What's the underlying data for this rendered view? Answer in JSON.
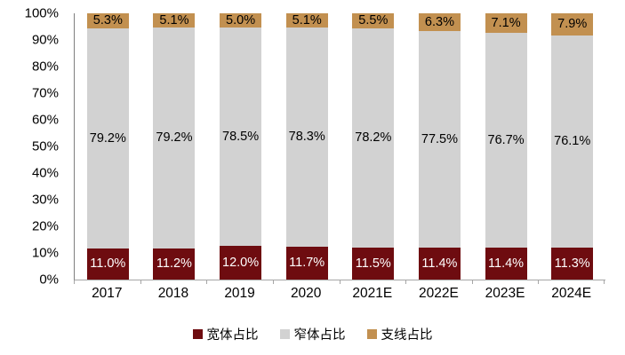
{
  "chart_data": {
    "type": "bar",
    "variant": "stacked-100-percent",
    "title": "",
    "xlabel": "",
    "ylabel": "",
    "background": "#FFFFFF",
    "grid": false,
    "categories": [
      "2017",
      "2018",
      "2019",
      "2020",
      "2021E",
      "2022E",
      "2023E",
      "2024E"
    ],
    "series": [
      {
        "name": "宽体占比",
        "color": "#6E0C10",
        "label_color": "#FFFFFF",
        "values": [
          11.0,
          11.2,
          12.0,
          11.7,
          11.5,
          11.4,
          11.4,
          11.3
        ],
        "labels": [
          "11.0%",
          "11.2%",
          "12.0%",
          "11.7%",
          "11.5%",
          "11.4%",
          "11.4%",
          "11.3%"
        ]
      },
      {
        "name": "窄体占比",
        "color": "#D2D2D2",
        "label_color": "#000000",
        "values": [
          79.2,
          79.2,
          78.5,
          78.3,
          78.2,
          77.5,
          76.7,
          76.1
        ],
        "labels": [
          "79.2%",
          "79.2%",
          "78.5%",
          "78.3%",
          "78.2%",
          "77.5%",
          "76.7%",
          "76.1%"
        ]
      },
      {
        "name": "支线占比",
        "color": "#C29050",
        "label_color": "#000000",
        "values": [
          5.3,
          5.1,
          5.0,
          5.1,
          5.5,
          6.3,
          7.1,
          7.9
        ],
        "labels": [
          "5.3%",
          "5.1%",
          "5.0%",
          "5.1%",
          "5.5%",
          "6.3%",
          "7.1%",
          "7.9%"
        ]
      }
    ],
    "y_axis": {
      "min": 0,
      "max": 100,
      "tick_step": 10,
      "ticks": [
        "100%",
        "90%",
        "80%",
        "70%",
        "60%",
        "50%",
        "40%",
        "30%",
        "20%",
        "10%",
        "0%"
      ]
    },
    "legend": {
      "position": "bottom",
      "items": [
        "宽体占比",
        "窄体占比",
        "支线占比"
      ]
    }
  }
}
